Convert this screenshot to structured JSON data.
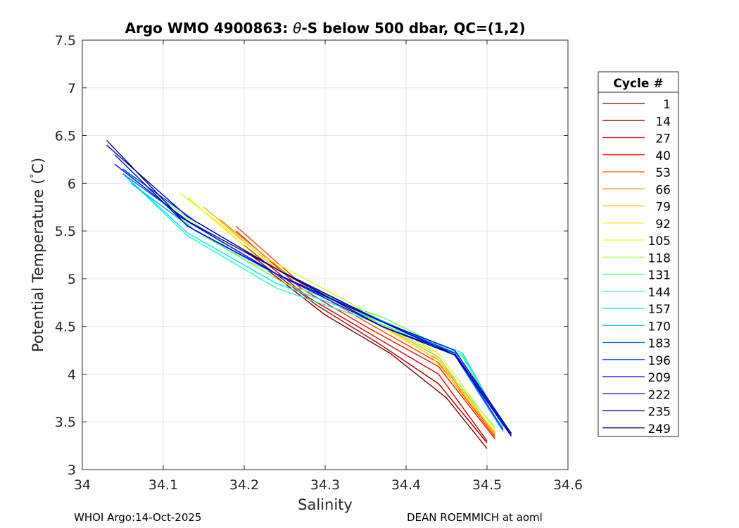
{
  "chart_data": {
    "type": "line",
    "title_parts": [
      "Argo WMO 4900863: ",
      "θ",
      "-S below 500 dbar,  QC=(1,2)"
    ],
    "xlabel": "Salinity",
    "ylabel_parts": [
      "Potential Temperature (",
      "°",
      "C)"
    ],
    "xlim": [
      34,
      34.6
    ],
    "ylim": [
      3,
      7.5
    ],
    "grid": true,
    "x_ticks": [
      34,
      34.1,
      34.2,
      34.3,
      34.4,
      34.5,
      34.6
    ],
    "x_tick_labels": [
      "34",
      "34.1",
      "34.2",
      "34.3",
      "34.4",
      "34.5",
      "34.6"
    ],
    "y_ticks": [
      3,
      3.5,
      4,
      4.5,
      5,
      5.5,
      6,
      6.5,
      7,
      7.5
    ],
    "y_tick_labels": [
      "3",
      "3.5",
      "4",
      "4.5",
      "5",
      "5.5",
      "6",
      "6.5",
      "7",
      "7.5"
    ],
    "legend": {
      "title": "Cycle #",
      "placement": "right-outside",
      "entries": [
        {
          "label": "1",
          "color": "#800000"
        },
        {
          "label": "14",
          "color": "#a80000"
        },
        {
          "label": "27",
          "color": "#d40000"
        },
        {
          "label": "40",
          "color": "#ee1800"
        },
        {
          "label": "53",
          "color": "#ff4800"
        },
        {
          "label": "66",
          "color": "#ff8000"
        },
        {
          "label": "79",
          "color": "#ffb400"
        },
        {
          "label": "92",
          "color": "#ffe800"
        },
        {
          "label": "105",
          "color": "#d6ff22"
        },
        {
          "label": "118",
          "color": "#a0ff58"
        },
        {
          "label": "131",
          "color": "#58ff60"
        },
        {
          "label": "144",
          "color": "#22ffcc"
        },
        {
          "label": "157",
          "color": "#00e4ff"
        },
        {
          "label": "170",
          "color": "#00b0ff"
        },
        {
          "label": "183",
          "color": "#0078ff"
        },
        {
          "label": "196",
          "color": "#0040ff"
        },
        {
          "label": "209",
          "color": "#0008ff"
        },
        {
          "label": "222",
          "color": "#0000d8"
        },
        {
          "label": "235",
          "color": "#0000ac"
        },
        {
          "label": "249",
          "color": "#000080"
        }
      ]
    },
    "series": [
      {
        "name": "1",
        "x": [
          34.22,
          34.3,
          34.38,
          34.45,
          34.5
        ],
        "y": [
          5.15,
          4.62,
          4.22,
          3.75,
          3.22
        ]
      },
      {
        "name": "14",
        "x": [
          34.2,
          34.29,
          34.37,
          34.44,
          34.5
        ],
        "y": [
          5.3,
          4.72,
          4.3,
          3.9,
          3.28
        ]
      },
      {
        "name": "27",
        "x": [
          34.2,
          34.28,
          34.36,
          34.44,
          34.5
        ],
        "y": [
          5.35,
          4.8,
          4.4,
          4.0,
          3.3
        ]
      },
      {
        "name": "40",
        "x": [
          34.19,
          34.27,
          34.35,
          34.44,
          34.51
        ],
        "y": [
          5.5,
          4.9,
          4.5,
          4.08,
          3.32
        ]
      },
      {
        "name": "53",
        "x": [
          34.19,
          34.27,
          34.35,
          34.44,
          34.51
        ],
        "y": [
          5.55,
          4.95,
          4.55,
          4.12,
          3.34
        ]
      },
      {
        "name": "66",
        "x": [
          34.17,
          34.26,
          34.35,
          34.44,
          34.51
        ],
        "y": [
          5.62,
          5.0,
          4.6,
          4.15,
          3.36
        ]
      },
      {
        "name": "79",
        "x": [
          34.15,
          34.24,
          34.34,
          34.44,
          34.51
        ],
        "y": [
          5.75,
          5.1,
          4.65,
          4.18,
          3.38
        ]
      },
      {
        "name": "92",
        "x": [
          34.13,
          34.22,
          34.33,
          34.43,
          34.51
        ],
        "y": [
          5.85,
          5.2,
          4.7,
          4.2,
          3.4
        ]
      },
      {
        "name": "105",
        "x": [
          34.12,
          34.22,
          34.33,
          34.44,
          34.51
        ],
        "y": [
          5.9,
          5.25,
          4.75,
          4.22,
          3.42
        ]
      },
      {
        "name": "118",
        "x": [
          34.08,
          34.2,
          34.32,
          34.43,
          34.51
        ],
        "y": [
          5.95,
          5.2,
          4.75,
          4.25,
          3.44
        ]
      },
      {
        "name": "131",
        "x": [
          34.05,
          34.14,
          34.25,
          34.37,
          34.47,
          34.52
        ],
        "y": [
          6.15,
          5.5,
          4.95,
          4.6,
          4.18,
          3.45
        ]
      },
      {
        "name": "144",
        "x": [
          34.05,
          34.13,
          34.24,
          34.36,
          34.47,
          34.52
        ],
        "y": [
          6.1,
          5.45,
          4.9,
          4.55,
          4.2,
          3.47
        ]
      },
      {
        "name": "157",
        "x": [
          34.05,
          34.13,
          34.24,
          34.36,
          34.47,
          34.52
        ],
        "y": [
          6.1,
          5.48,
          4.95,
          4.58,
          4.22,
          3.45
        ]
      },
      {
        "name": "170",
        "x": [
          34.06,
          34.14,
          34.25,
          34.36,
          34.46,
          34.52
        ],
        "y": [
          6.0,
          5.5,
          5.0,
          4.6,
          4.22,
          3.42
        ]
      },
      {
        "name": "183",
        "x": [
          34.05,
          34.14,
          34.25,
          34.37,
          34.46,
          34.52
        ],
        "y": [
          6.1,
          5.55,
          5.0,
          4.55,
          4.2,
          3.4
        ]
      },
      {
        "name": "196",
        "x": [
          34.05,
          34.14,
          34.25,
          34.37,
          34.46,
          34.52
        ],
        "y": [
          6.15,
          5.6,
          5.05,
          4.55,
          4.22,
          3.42
        ]
      },
      {
        "name": "209",
        "x": [
          34.04,
          34.13,
          34.24,
          34.37,
          34.46,
          34.53
        ],
        "y": [
          6.2,
          5.6,
          5.05,
          4.5,
          4.22,
          3.38
        ]
      },
      {
        "name": "222",
        "x": [
          34.04,
          34.13,
          34.24,
          34.37,
          34.46,
          34.53
        ],
        "y": [
          6.3,
          5.55,
          5.05,
          4.55,
          4.25,
          3.38
        ]
      },
      {
        "name": "235",
        "x": [
          34.03,
          34.13,
          34.24,
          34.37,
          34.46,
          34.53
        ],
        "y": [
          6.4,
          5.65,
          5.1,
          4.55,
          4.2,
          3.36
        ]
      },
      {
        "name": "249",
        "x": [
          34.03,
          34.12,
          34.24,
          34.37,
          34.46,
          34.53
        ],
        "y": [
          6.45,
          5.65,
          5.1,
          4.5,
          4.2,
          3.35
        ]
      }
    ]
  },
  "footer": {
    "left": "WHOI Argo:14-Oct-2025",
    "right": "DEAN ROEMMICH at aoml"
  }
}
